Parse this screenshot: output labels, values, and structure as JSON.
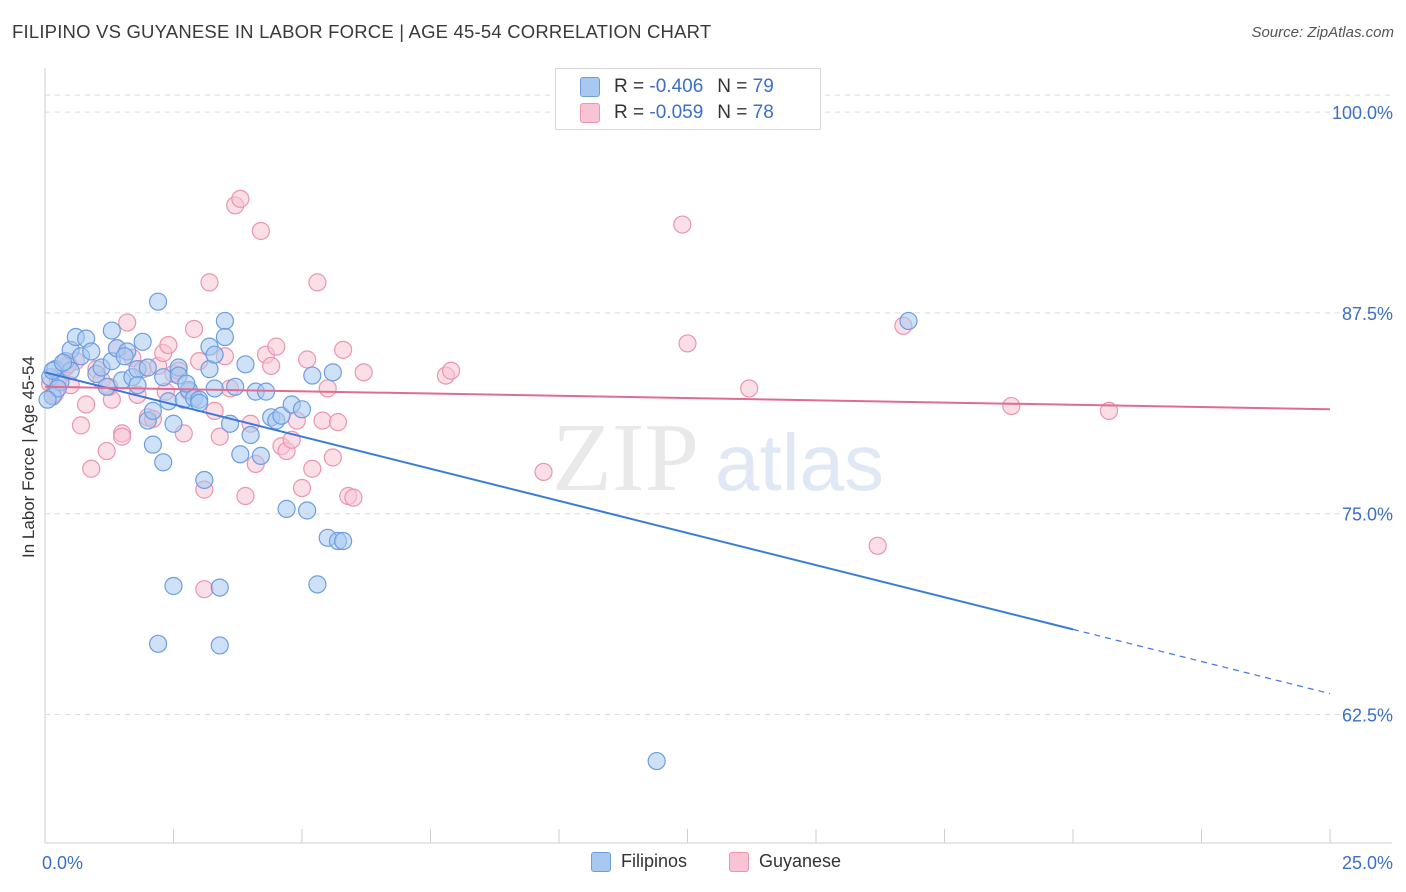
{
  "header": {
    "title": "FILIPINO VS GUYANESE IN LABOR FORCE | AGE 45-54 CORRELATION CHART",
    "source": "Source: ZipAtlas.com"
  },
  "legend": {
    "filipinos": {
      "r_label": "R =",
      "r_value": "-0.406",
      "n_label": "N =",
      "n_value": "79"
    },
    "guyanese": {
      "r_label": "R =",
      "r_value": "-0.059",
      "n_label": "N =",
      "n_value": "78"
    }
  },
  "bottom_legend": {
    "filipinos": "Filipinos",
    "guyanese": "Guyanese"
  },
  "watermark": {
    "zip": "ZIP",
    "atlas": "atlas"
  },
  "colors": {
    "blue_fill": "#a8c8f0",
    "blue_stroke": "#6d9de0",
    "blue_line": "#3b78d8",
    "pink_fill": "#f8c4d4",
    "pink_stroke": "#ec94b0",
    "pink_line": "#e06c93",
    "axis_text": "#3b6fc9"
  },
  "chart_data": {
    "type": "scatter",
    "title": "FILIPINO VS GUYANESE IN LABOR FORCE | AGE 45-54 CORRELATION CHART",
    "xlabel": "",
    "ylabel": "In Labor Force | Age 45-54",
    "xlim": [
      0,
      25
    ],
    "ylim": [
      54.5,
      102
    ],
    "x_tick_labels": [
      "0.0%",
      "25.0%"
    ],
    "y_ticks": [
      62.5,
      75.0,
      87.5,
      100.0
    ],
    "y_tick_labels": [
      "62.5%",
      "75.0%",
      "87.5%",
      "100.0%"
    ],
    "grid": "horizontal dashed",
    "legend_position": "top-center",
    "series": [
      {
        "name": "Filipinos",
        "color": "#6d9de0",
        "points": [
          [
            0.1,
            83.5
          ],
          [
            0.15,
            82.3
          ],
          [
            0.2,
            84.0
          ],
          [
            0.3,
            83.2
          ],
          [
            0.4,
            84.5
          ],
          [
            0.5,
            85.2
          ],
          [
            0.5,
            83.9
          ],
          [
            0.6,
            86.0
          ],
          [
            0.7,
            84.8
          ],
          [
            0.8,
            85.9
          ],
          [
            0.9,
            85.1
          ],
          [
            1.0,
            83.7
          ],
          [
            1.1,
            84.1
          ],
          [
            1.2,
            82.9
          ],
          [
            1.3,
            86.4
          ],
          [
            1.3,
            84.5
          ],
          [
            1.4,
            85.3
          ],
          [
            1.5,
            83.3
          ],
          [
            1.6,
            85.1
          ],
          [
            1.7,
            83.5
          ],
          [
            1.8,
            84.0
          ],
          [
            1.8,
            83.0
          ],
          [
            1.9,
            85.7
          ],
          [
            2.0,
            84.1
          ],
          [
            2.0,
            80.8
          ],
          [
            2.1,
            81.4
          ],
          [
            2.1,
            79.3
          ],
          [
            2.2,
            88.2
          ],
          [
            2.3,
            83.5
          ],
          [
            2.3,
            78.2
          ],
          [
            2.4,
            82.0
          ],
          [
            2.5,
            80.6
          ],
          [
            2.5,
            70.5
          ],
          [
            2.6,
            84.1
          ],
          [
            2.6,
            83.6
          ],
          [
            2.7,
            82.1
          ],
          [
            2.8,
            82.7
          ],
          [
            2.9,
            82.2
          ],
          [
            3.0,
            82.1
          ],
          [
            3.0,
            81.9
          ],
          [
            3.1,
            77.1
          ],
          [
            3.2,
            85.4
          ],
          [
            3.2,
            84.0
          ],
          [
            3.3,
            84.9
          ],
          [
            3.3,
            82.8
          ],
          [
            3.4,
            70.4
          ],
          [
            3.5,
            87.0
          ],
          [
            3.5,
            86.0
          ],
          [
            3.6,
            80.6
          ],
          [
            3.7,
            82.9
          ],
          [
            3.8,
            78.7
          ],
          [
            3.9,
            84.3
          ],
          [
            4.0,
            79.9
          ],
          [
            4.1,
            82.6
          ],
          [
            4.2,
            78.6
          ],
          [
            4.3,
            82.6
          ],
          [
            4.4,
            81.0
          ],
          [
            4.5,
            80.8
          ],
          [
            4.6,
            81.1
          ],
          [
            4.7,
            75.3
          ],
          [
            4.8,
            81.8
          ],
          [
            5.0,
            81.5
          ],
          [
            5.1,
            75.2
          ],
          [
            5.2,
            83.6
          ],
          [
            5.3,
            70.6
          ],
          [
            5.5,
            73.5
          ],
          [
            5.6,
            83.8
          ],
          [
            5.7,
            73.3
          ],
          [
            5.8,
            73.3
          ],
          [
            2.2,
            66.9
          ],
          [
            3.4,
            66.8
          ],
          [
            11.9,
            59.6
          ],
          [
            16.8,
            87.0
          ],
          [
            0.15,
            83.9
          ],
          [
            0.25,
            82.8
          ],
          [
            0.35,
            84.4
          ],
          [
            1.55,
            84.8
          ],
          [
            2.75,
            83.1
          ],
          [
            0.05,
            82.1
          ]
        ]
      },
      {
        "name": "Guyanese",
        "color": "#ec94b0",
        "points": [
          [
            0.1,
            83.1
          ],
          [
            0.2,
            82.5
          ],
          [
            0.3,
            83.6
          ],
          [
            0.4,
            84.1
          ],
          [
            0.5,
            83.0
          ],
          [
            0.6,
            84.5
          ],
          [
            0.7,
            80.5
          ],
          [
            0.8,
            81.8
          ],
          [
            0.9,
            77.8
          ],
          [
            1.0,
            84.0
          ],
          [
            1.1,
            83.3
          ],
          [
            1.2,
            78.9
          ],
          [
            1.3,
            82.1
          ],
          [
            1.4,
            85.3
          ],
          [
            1.5,
            80.0
          ],
          [
            1.6,
            86.9
          ],
          [
            1.7,
            84.7
          ],
          [
            1.8,
            82.4
          ],
          [
            1.9,
            84.0
          ],
          [
            2.0,
            81.0
          ],
          [
            2.1,
            80.9
          ],
          [
            2.2,
            84.2
          ],
          [
            2.3,
            85.0
          ],
          [
            2.4,
            85.5
          ],
          [
            2.5,
            83.7
          ],
          [
            2.6,
            83.9
          ],
          [
            2.7,
            80.0
          ],
          [
            2.8,
            82.6
          ],
          [
            2.9,
            86.5
          ],
          [
            3.0,
            84.5
          ],
          [
            3.1,
            76.5
          ],
          [
            3.2,
            89.4
          ],
          [
            3.3,
            81.4
          ],
          [
            3.4,
            79.8
          ],
          [
            3.5,
            84.8
          ],
          [
            3.6,
            82.8
          ],
          [
            3.7,
            94.2
          ],
          [
            3.8,
            94.6
          ],
          [
            3.9,
            76.1
          ],
          [
            4.0,
            80.6
          ],
          [
            4.1,
            78.1
          ],
          [
            4.2,
            92.6
          ],
          [
            4.3,
            84.9
          ],
          [
            4.4,
            84.2
          ],
          [
            4.5,
            85.4
          ],
          [
            4.6,
            79.2
          ],
          [
            4.7,
            78.9
          ],
          [
            4.8,
            79.6
          ],
          [
            4.9,
            80.8
          ],
          [
            5.0,
            76.6
          ],
          [
            5.1,
            84.6
          ],
          [
            5.2,
            77.8
          ],
          [
            5.3,
            89.4
          ],
          [
            5.4,
            80.8
          ],
          [
            5.5,
            82.8
          ],
          [
            5.6,
            78.5
          ],
          [
            5.7,
            80.7
          ],
          [
            5.8,
            85.2
          ],
          [
            5.9,
            76.1
          ],
          [
            6.0,
            76.0
          ],
          [
            6.2,
            83.8
          ],
          [
            7.8,
            83.6
          ],
          [
            7.9,
            83.9
          ],
          [
            9.7,
            77.6
          ],
          [
            12.4,
            93.0
          ],
          [
            12.5,
            85.6
          ],
          [
            13.7,
            82.8
          ],
          [
            16.2,
            73.0
          ],
          [
            16.7,
            86.7
          ],
          [
            18.8,
            81.7
          ],
          [
            20.7,
            81.4
          ],
          [
            3.1,
            70.3
          ],
          [
            1.5,
            79.8
          ],
          [
            0.15,
            82.4
          ],
          [
            0.25,
            83.3
          ],
          [
            0.45,
            84.3
          ],
          [
            1.25,
            82.9
          ],
          [
            2.35,
            82.6
          ]
        ]
      }
    ],
    "trend_lines": [
      {
        "series": "Filipinos",
        "x_start": 0,
        "y_start": 83.8,
        "x_end": 20.0,
        "y_end": 67.8,
        "dashed_to_x": 25.0,
        "dashed_to_y": 63.8
      },
      {
        "series": "Guyanese",
        "x_start": 0,
        "y_start": 82.9,
        "x_end": 25.0,
        "y_end": 81.5
      }
    ]
  }
}
